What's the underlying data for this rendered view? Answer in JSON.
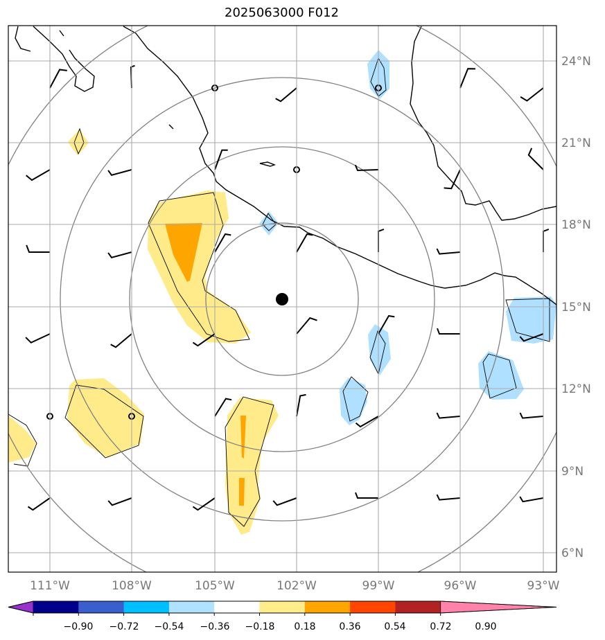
{
  "title": "2025063000 F012",
  "lon_labels": [
    "111°W",
    "108°W",
    "105°W",
    "102°W",
    "99°W",
    "96°W",
    "93°W"
  ],
  "lat_labels": [
    "24°N",
    "21°N",
    "18°N",
    "15°N",
    "12°N",
    "9°N",
    "6°N"
  ],
  "colorbar": {
    "colors": [
      "#9932cc",
      "#00008b",
      "#3a5fcd",
      "#00bfff",
      "#b0e2ff",
      "#ffffff",
      "#ffec8b",
      "#ffa500",
      "#ff4500",
      "#b22222",
      "#ff82ab"
    ],
    "tick_labels": [
      "−0.90",
      "−0.72",
      "−0.54",
      "−0.36",
      "−0.18",
      "0.18",
      "0.36",
      "0.54",
      "0.72",
      "0.90"
    ]
  },
  "fill_colors": {
    "light_yellow": "#ffeb8a",
    "orange": "#ffa500",
    "light_blue": "#b0e0ff"
  },
  "storm_center": {
    "lon": -102.5,
    "lat": 15.2
  }
}
